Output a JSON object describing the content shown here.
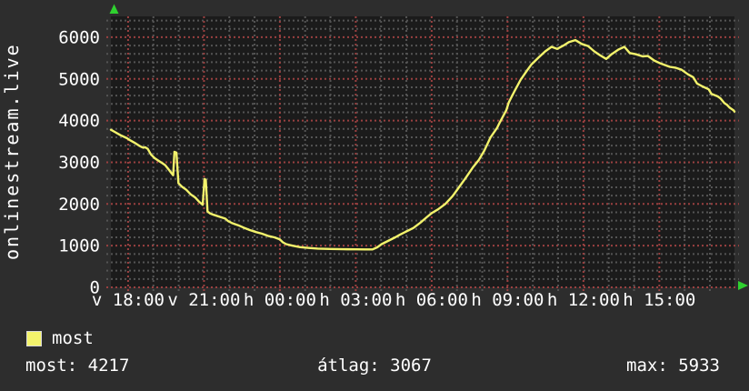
{
  "y_axis_title": "onlinestream.live",
  "colors": {
    "background": "#2d2d2d",
    "plot_background": "#1b1b1b",
    "grid_major": "#9a4040",
    "grid_minor": "#545454",
    "axis_arrow": "#2fd12f",
    "series_line": "#f3f36c",
    "text": "#ffffff"
  },
  "legend": {
    "series_label": "most"
  },
  "stats": {
    "current": "most: 4217",
    "average": "átlag: 3067",
    "max": "max: 5933"
  },
  "chart_data": {
    "type": "line",
    "title": "onlinestream.live",
    "ylabel": "",
    "xlabel": "",
    "grid": true,
    "legend_position": "bottom-left",
    "x_axis": {
      "unit": "hours (17:19 day1 - 17:58 day2, v=Sunday h=Monday)",
      "range_hours": [
        17.32,
        41.97
      ],
      "minor_step_hours": 1,
      "major_ticks": [
        {
          "hour": 18,
          "label": "v 18:00"
        },
        {
          "hour": 21,
          "label": "v 21:00"
        },
        {
          "hour": 24,
          "label": "h 00:00"
        },
        {
          "hour": 27,
          "label": "h 03:00"
        },
        {
          "hour": 30,
          "label": "h 06:00"
        },
        {
          "hour": 33,
          "label": "h 09:00"
        },
        {
          "hour": 36,
          "label": "h 12:00"
        },
        {
          "hour": 39,
          "label": "h 15:00"
        }
      ]
    },
    "y_axis": {
      "range": [
        0,
        6500
      ],
      "major_step": 1000,
      "minor_step": 200,
      "ticks": [
        {
          "value": 0,
          "label": "0"
        },
        {
          "value": 1000,
          "label": "1000"
        },
        {
          "value": 2000,
          "label": "2000"
        },
        {
          "value": 3000,
          "label": "3000"
        },
        {
          "value": 4000,
          "label": "4000"
        },
        {
          "value": 5000,
          "label": "5000"
        },
        {
          "value": 6000,
          "label": "6000"
        }
      ]
    },
    "stats_values": {
      "most": 4217,
      "atlag": 3067,
      "max": 5933
    },
    "series": [
      {
        "name": "most",
        "color": "#f3f36c",
        "points": [
          [
            17.32,
            3780
          ],
          [
            17.5,
            3720
          ],
          [
            17.7,
            3650
          ],
          [
            17.95,
            3580
          ],
          [
            18.1,
            3520
          ],
          [
            18.25,
            3470
          ],
          [
            18.42,
            3405
          ],
          [
            18.52,
            3370
          ],
          [
            18.6,
            3350
          ],
          [
            18.68,
            3360
          ],
          [
            18.78,
            3320
          ],
          [
            18.9,
            3190
          ],
          [
            19.05,
            3100
          ],
          [
            19.22,
            3030
          ],
          [
            19.35,
            2980
          ],
          [
            19.47,
            2930
          ],
          [
            19.6,
            2830
          ],
          [
            19.7,
            2750
          ],
          [
            19.78,
            2690
          ],
          [
            19.83,
            3250
          ],
          [
            19.91,
            3230
          ],
          [
            19.99,
            2500
          ],
          [
            20.12,
            2420
          ],
          [
            20.3,
            2340
          ],
          [
            20.48,
            2230
          ],
          [
            20.66,
            2150
          ],
          [
            20.8,
            2060
          ],
          [
            20.95,
            1980
          ],
          [
            21.02,
            2600
          ],
          [
            21.07,
            2580
          ],
          [
            21.14,
            1820
          ],
          [
            21.25,
            1770
          ],
          [
            21.38,
            1740
          ],
          [
            21.63,
            1690
          ],
          [
            21.84,
            1650
          ],
          [
            21.95,
            1590
          ],
          [
            22.1,
            1545
          ],
          [
            22.35,
            1490
          ],
          [
            22.56,
            1435
          ],
          [
            22.81,
            1375
          ],
          [
            23.07,
            1325
          ],
          [
            23.28,
            1290
          ],
          [
            23.53,
            1235
          ],
          [
            23.78,
            1200
          ],
          [
            24.0,
            1150
          ],
          [
            24.12,
            1080
          ],
          [
            24.25,
            1035
          ],
          [
            24.5,
            1000
          ],
          [
            24.8,
            965
          ],
          [
            25.15,
            945
          ],
          [
            25.5,
            930
          ],
          [
            26.0,
            920
          ],
          [
            26.5,
            915
          ],
          [
            27.0,
            912
          ],
          [
            27.4,
            910
          ],
          [
            27.66,
            910
          ],
          [
            27.85,
            960
          ],
          [
            28.02,
            1035
          ],
          [
            28.2,
            1090
          ],
          [
            28.38,
            1145
          ],
          [
            28.56,
            1200
          ],
          [
            28.74,
            1260
          ],
          [
            29.0,
            1340
          ],
          [
            29.28,
            1425
          ],
          [
            29.55,
            1550
          ],
          [
            29.82,
            1690
          ],
          [
            30.0,
            1780
          ],
          [
            30.25,
            1870
          ],
          [
            30.54,
            2000
          ],
          [
            30.83,
            2190
          ],
          [
            31.08,
            2400
          ],
          [
            31.33,
            2610
          ],
          [
            31.62,
            2870
          ],
          [
            31.87,
            3060
          ],
          [
            32.08,
            3280
          ],
          [
            32.33,
            3600
          ],
          [
            32.59,
            3830
          ],
          [
            32.69,
            3950
          ],
          [
            32.95,
            4250
          ],
          [
            33.05,
            4440
          ],
          [
            33.27,
            4700
          ],
          [
            33.52,
            4980
          ],
          [
            33.77,
            5200
          ],
          [
            33.95,
            5350
          ],
          [
            34.24,
            5520
          ],
          [
            34.49,
            5660
          ],
          [
            34.74,
            5770
          ],
          [
            34.96,
            5720
          ],
          [
            35.21,
            5800
          ],
          [
            35.42,
            5880
          ],
          [
            35.68,
            5930
          ],
          [
            35.93,
            5840
          ],
          [
            36.18,
            5790
          ],
          [
            36.43,
            5660
          ],
          [
            36.65,
            5570
          ],
          [
            36.9,
            5480
          ],
          [
            37.11,
            5590
          ],
          [
            37.37,
            5700
          ],
          [
            37.62,
            5770
          ],
          [
            37.83,
            5620
          ],
          [
            38.08,
            5590
          ],
          [
            38.34,
            5540
          ],
          [
            38.55,
            5550
          ],
          [
            38.8,
            5440
          ],
          [
            39.05,
            5370
          ],
          [
            39.41,
            5290
          ],
          [
            39.63,
            5270
          ],
          [
            39.88,
            5220
          ],
          [
            40.13,
            5110
          ],
          [
            40.34,
            5040
          ],
          [
            40.49,
            4890
          ],
          [
            40.7,
            4820
          ],
          [
            40.95,
            4750
          ],
          [
            41.06,
            4640
          ],
          [
            41.31,
            4580
          ],
          [
            41.42,
            4530
          ],
          [
            41.57,
            4420
          ],
          [
            41.67,
            4380
          ],
          [
            41.78,
            4310
          ],
          [
            41.93,
            4250
          ],
          [
            41.97,
            4217
          ]
        ]
      }
    ]
  }
}
